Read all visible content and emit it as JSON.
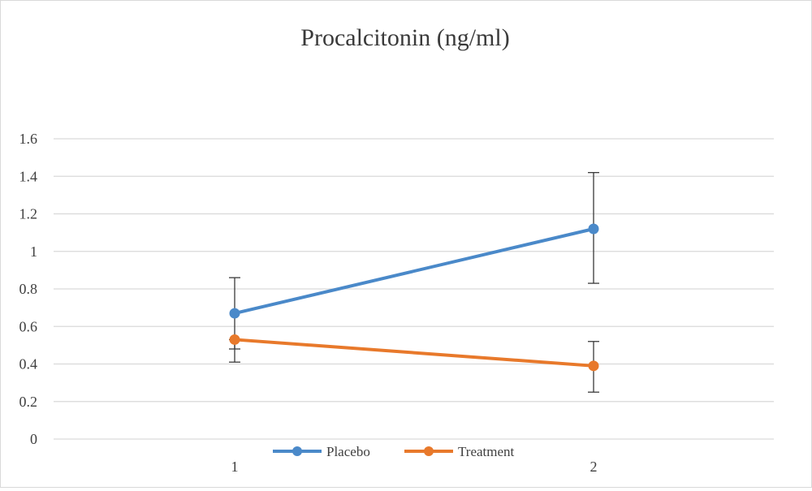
{
  "chart_data": {
    "type": "line",
    "title": "Procalcitonin (ng/ml)",
    "xlabel": "",
    "ylabel": "",
    "categories": [
      "1",
      "2"
    ],
    "ylim": [
      0,
      1.6
    ],
    "yticks": [
      "0",
      "0.2",
      "0.4",
      "0.6",
      "0.8",
      "1",
      "1.2",
      "1.4",
      "1.6"
    ],
    "grid": true,
    "legend_position": "bottom",
    "series": [
      {
        "name": "Placebo",
        "color": "#4a89c9",
        "values": [
          0.67,
          1.12
        ],
        "error_low": [
          0.48,
          0.83
        ],
        "error_high": [
          0.86,
          1.42
        ]
      },
      {
        "name": "Treatment",
        "color": "#e8792b",
        "values": [
          0.53,
          0.39
        ],
        "error_low": [
          0.41,
          0.25
        ],
        "error_high": [
          0.53,
          0.52
        ]
      }
    ]
  }
}
